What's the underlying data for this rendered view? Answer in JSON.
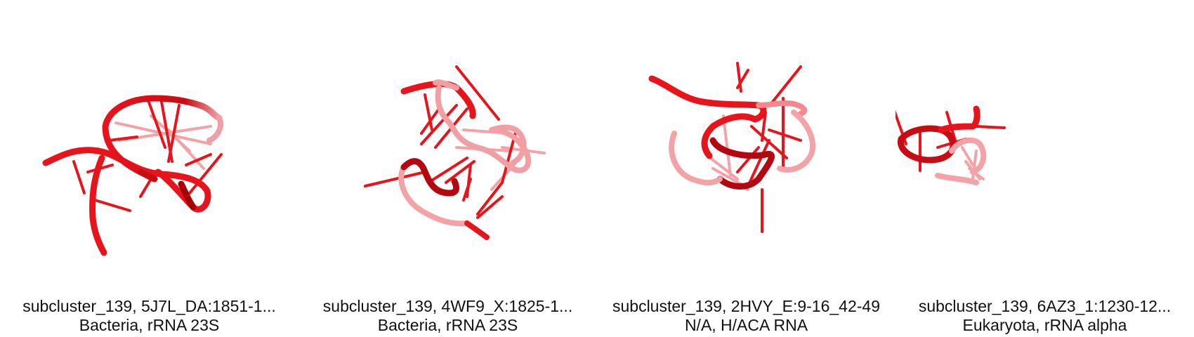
{
  "colors": {
    "backbone": "#e8141c",
    "backbone_dark": "#a8000a",
    "backbone_light": "#f08a8e",
    "background": "#ffffff",
    "text": "#111111"
  },
  "panels": [
    {
      "line1": "subcluster_139, 5J7L_DA:1851-1...",
      "line2": "Bacteria, rRNA 23S",
      "structure_icon": "rna-3d-structure-icon"
    },
    {
      "line1": "subcluster_139, 4WF9_X:1825-1...",
      "line2": "Bacteria, rRNA 23S",
      "structure_icon": "rna-3d-structure-icon"
    },
    {
      "line1": "subcluster_139, 2HVY_E:9-16_42-49",
      "line2": "N/A, H/ACA RNA",
      "structure_icon": "rna-3d-structure-icon"
    },
    {
      "line1": "subcluster_139, 6AZ3_1:1230-12...",
      "line2": "Eukaryota, rRNA alpha",
      "structure_icon": "rna-3d-structure-icon"
    }
  ]
}
